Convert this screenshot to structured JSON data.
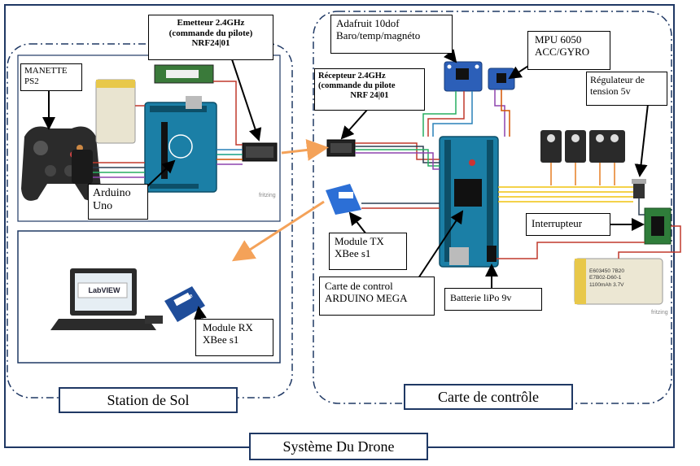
{
  "labels": {
    "manette": [
      "MANETTE",
      "PS2"
    ],
    "emetteur": [
      "Emetteur 2.4GHz",
      "(commande du pilote)",
      "NRF24|01"
    ],
    "arduino_uno": [
      "Arduino",
      "Uno"
    ],
    "recepteur": [
      "Récepteur 2.4GHz",
      "(commande du pilote",
      "NRF 24|01"
    ],
    "adafruit": [
      "Adafruit 10dof",
      "Baro/temp/magnéto"
    ],
    "mpu": [
      "MPU 6050",
      "ACC/GYRO"
    ],
    "regulateur": [
      "Régulateur de",
      "tension 5v"
    ],
    "interrupteur": "Interrupteur",
    "module_tx": [
      "Module TX",
      "XBee s1"
    ],
    "carte_control": [
      "Carte de control",
      "ARDUINO MEGA"
    ],
    "batterie": "Batterie liPo 9v",
    "module_rx": [
      "Module RX",
      "XBee s1"
    ]
  },
  "sections": {
    "station": "Station de Sol",
    "carte": "Carte de contrôle",
    "systeme": "Système Du Drone"
  },
  "components": {
    "fritzing": "fritzing",
    "labview": "LabVIEW",
    "xbee": "XBee",
    "battery_text": [
      "E603450 7B20",
      "E7B02-D60-1",
      "1100mAh 3.7V"
    ]
  },
  "colors": {
    "frame": "#1f3864",
    "arrow_orange": "#f4a259",
    "arduino": "#1b7fa6",
    "servo": "#2a2a2a",
    "battery": "#e8c84a"
  }
}
